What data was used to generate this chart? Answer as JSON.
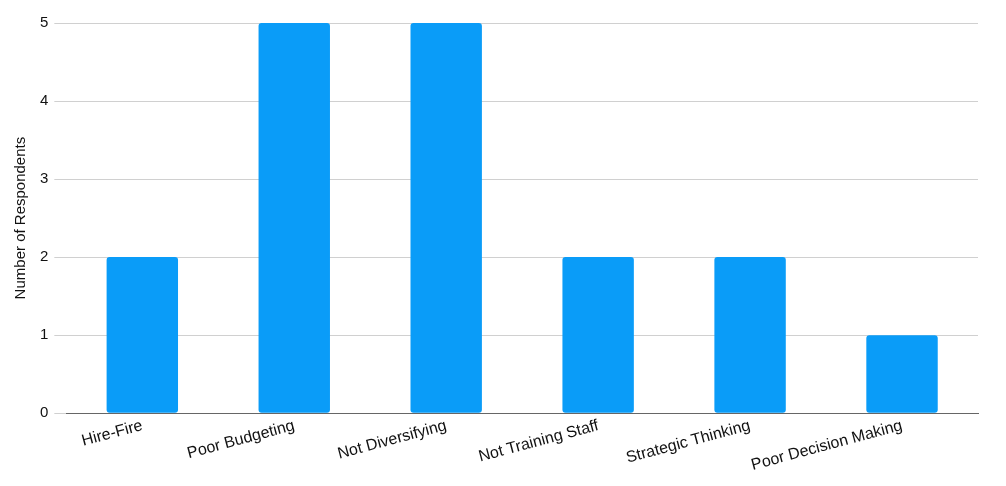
{
  "chart_data": {
    "type": "bar",
    "ylabel": "Number of Respondents",
    "categories": [
      "Hire-Fire",
      "Poor Budgeting",
      "Not Diversifying",
      "Not Training Staff",
      "Strategic Thinking",
      "Poor Decision Making"
    ],
    "values": [
      2,
      5,
      5,
      2,
      2,
      1
    ],
    "color": "#0a9cf8",
    "ylim": [
      0,
      5
    ],
    "yticks": [
      0,
      1,
      2,
      3,
      4,
      5
    ],
    "grid": "y",
    "legend": false
  }
}
